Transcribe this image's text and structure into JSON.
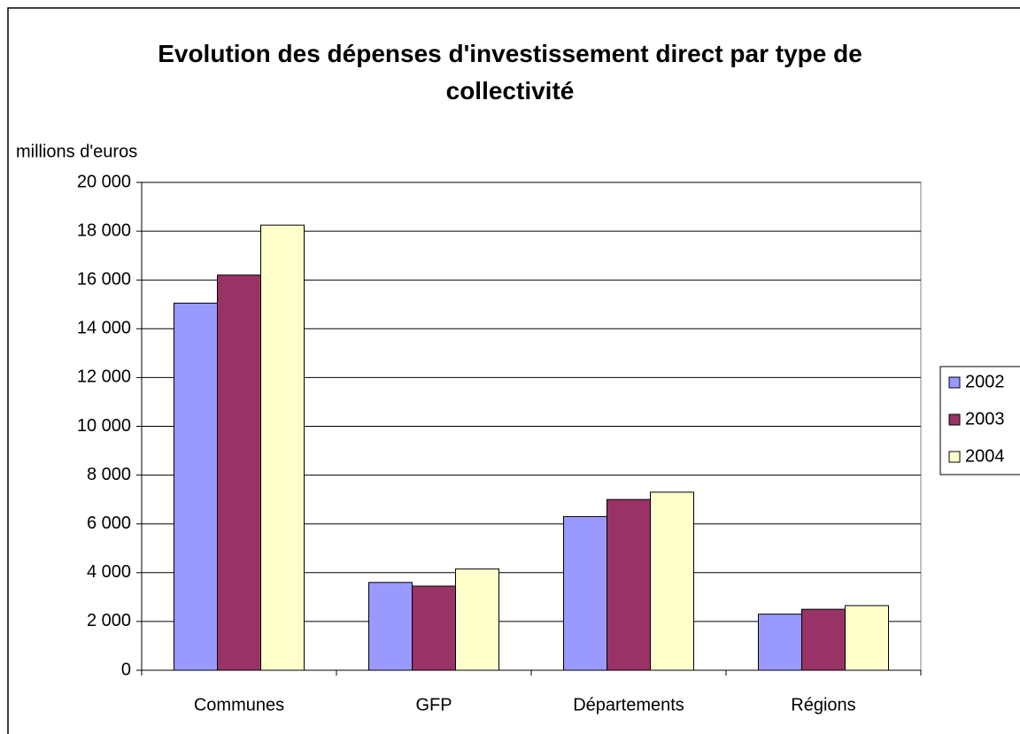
{
  "chart_data": {
    "type": "bar",
    "title": "Evolution des dépenses d'investissement direct par type de collectivité",
    "y_label": "millions d'euros",
    "categories": [
      "Communes",
      "GFP",
      "Départements",
      "Régions"
    ],
    "series": [
      {
        "name": "2002",
        "color": "#9999ff",
        "values": [
          15050,
          3600,
          6300,
          2300
        ]
      },
      {
        "name": "2003",
        "color": "#993366",
        "values": [
          16200,
          3450,
          7000,
          2500
        ]
      },
      {
        "name": "2004",
        "color": "#ffffcc",
        "values": [
          18250,
          4150,
          7300,
          2650
        ]
      }
    ],
    "ylim": [
      0,
      20000
    ],
    "yticks": [
      0,
      {
        "value": 2000,
        "label": "2 000"
      },
      {
        "value": 4000,
        "label": "4 000"
      },
      {
        "value": 6000,
        "label": "6 000"
      },
      {
        "value": 8000,
        "label": "8 000"
      },
      {
        "value": 10000,
        "label": "10 000"
      },
      {
        "value": 12000,
        "label": "12 000"
      },
      {
        "value": 14000,
        "label": "14 000"
      },
      {
        "value": 16000,
        "label": "16 000"
      },
      {
        "value": 18000,
        "label": "18 000"
      },
      {
        "value": 20000,
        "label": "20 000"
      }
    ],
    "grid": true,
    "legend": "right"
  }
}
